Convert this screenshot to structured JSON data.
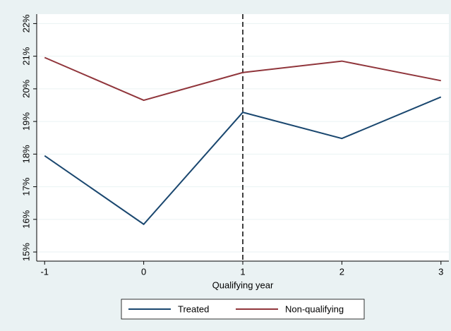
{
  "chart_data": {
    "type": "line",
    "x_label": "Qualifying year",
    "x": [
      -1,
      0,
      1,
      2,
      3
    ],
    "series": [
      {
        "name": "Treated",
        "color": "#1a476f",
        "values": [
          17.95,
          15.85,
          19.28,
          18.48,
          19.75
        ]
      },
      {
        "name": "Non-qualifying",
        "color": "#90353b",
        "values": [
          20.96,
          19.65,
          20.5,
          20.85,
          20.25
        ]
      }
    ],
    "xlim": [
      -1.08,
      3.08
    ],
    "xticks": [
      -1,
      0,
      1,
      2,
      3
    ],
    "ylim": [
      14.72,
      22.29
    ],
    "yticks": [
      {
        "value": 15,
        "label": "15%"
      },
      {
        "value": 16,
        "label": "16%"
      },
      {
        "value": 17,
        "label": "17%"
      },
      {
        "value": 18,
        "label": "18%"
      },
      {
        "value": 19,
        "label": "19%"
      },
      {
        "value": 20,
        "label": "20%"
      },
      {
        "value": 21,
        "label": "21%"
      },
      {
        "value": 22,
        "label": "22%"
      }
    ],
    "reference_line_x": 1,
    "grid": true,
    "legend": "bottom"
  }
}
